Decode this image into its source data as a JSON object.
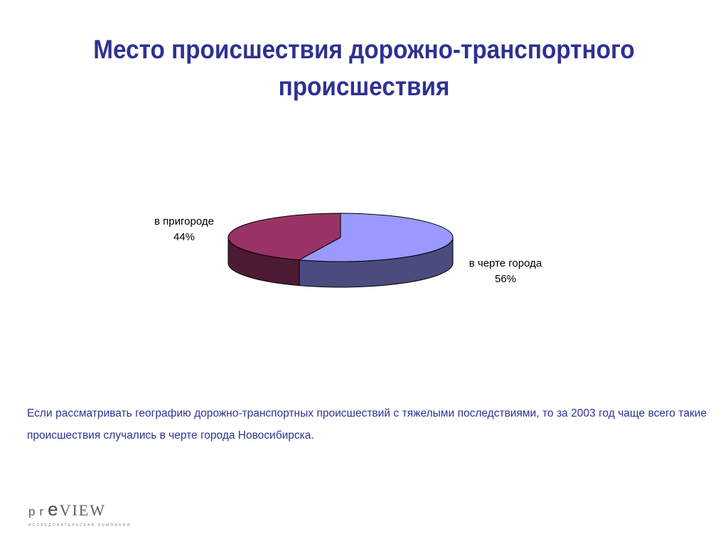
{
  "slide": {
    "title": "Место происшествия дорожно-транспортного происшествия",
    "paragraph": "Если рассматривать географию дорожно-транспортных происшествий с тяжелыми последствиями, то за 2003 год чаще всего такие происшествия   случались в черте города Новосибирска."
  },
  "chart_data": {
    "type": "pie",
    "style": "3d",
    "slices": [
      {
        "label": "в черте города",
        "value": 56,
        "value_label": "56%",
        "top_color": "#9999ff",
        "side_color": "#4b4b80"
      },
      {
        "label": "в пригороде",
        "value": 44,
        "value_label": "44%",
        "top_color": "#993366",
        "side_color": "#4d1a33"
      }
    ]
  },
  "logo": {
    "pr": "pr",
    "e": "e",
    "view": "VIEW",
    "tagline": "ИССЛЕДОВАТЕЛЬСКАЯ КОМПАНИЯ"
  }
}
